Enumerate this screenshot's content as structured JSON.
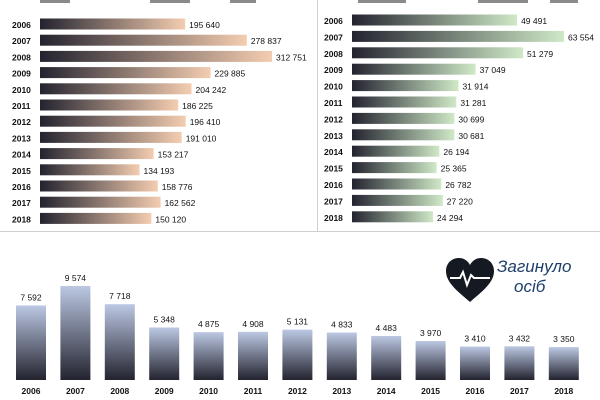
{
  "colors": {
    "left_start": "#23232f",
    "left_end": "#f4cdb0",
    "right_start": "#23232f",
    "right_end": "#cfe9c7",
    "bottom_top": "#bcc8e3",
    "bottom_bottom": "#23232f",
    "title": "#1e3f6b"
  },
  "bottom_title": [
    "Загинуло",
    "осіб"
  ],
  "bottom_icon": "heart-pulse-icon",
  "chart_data": [
    {
      "type": "bar",
      "orientation": "horizontal",
      "categories": [
        "2006",
        "2007",
        "2008",
        "2009",
        "2010",
        "2011",
        "2012",
        "2013",
        "2014",
        "2015",
        "2016",
        "2017",
        "2018"
      ],
      "values": [
        195640,
        278837,
        312751,
        229885,
        204242,
        186225,
        196410,
        191010,
        153217,
        134193,
        158776,
        162562,
        150120
      ],
      "labels": [
        "195 640",
        "278 837",
        "312 751",
        "229 885",
        "204 242",
        "186 225",
        "196 410",
        "191 010",
        "153 217",
        "134 193",
        "158 776",
        "162 562",
        "150 120"
      ]
    },
    {
      "type": "bar",
      "orientation": "horizontal",
      "categories": [
        "2006",
        "2007",
        "2008",
        "2009",
        "2010",
        "2011",
        "2012",
        "2013",
        "2014",
        "2015",
        "2016",
        "2017",
        "2018"
      ],
      "values": [
        49491,
        63554,
        51279,
        37049,
        31914,
        31281,
        30699,
        30681,
        26194,
        25365,
        26782,
        27220,
        24294
      ],
      "labels": [
        "49 491",
        "63 554",
        "51 279",
        "37 049",
        "31 914",
        "31 281",
        "30 699",
        "30 681",
        "26 194",
        "25 365",
        "26 782",
        "27 220",
        "24 294"
      ]
    },
    {
      "type": "bar",
      "orientation": "vertical",
      "categories": [
        "2006",
        "2007",
        "2008",
        "2009",
        "2010",
        "2011",
        "2012",
        "2013",
        "2014",
        "2015",
        "2016",
        "2017",
        "2018"
      ],
      "values": [
        7592,
        9574,
        7718,
        5348,
        4875,
        4908,
        5131,
        4833,
        4483,
        3970,
        3410,
        3432,
        3350
      ],
      "labels": [
        "7 592",
        "9 574",
        "7 718",
        "5 348",
        "4 875",
        "4 908",
        "5 131",
        "4 833",
        "4 483",
        "3 970",
        "3 410",
        "3 432",
        "3 350"
      ]
    }
  ]
}
